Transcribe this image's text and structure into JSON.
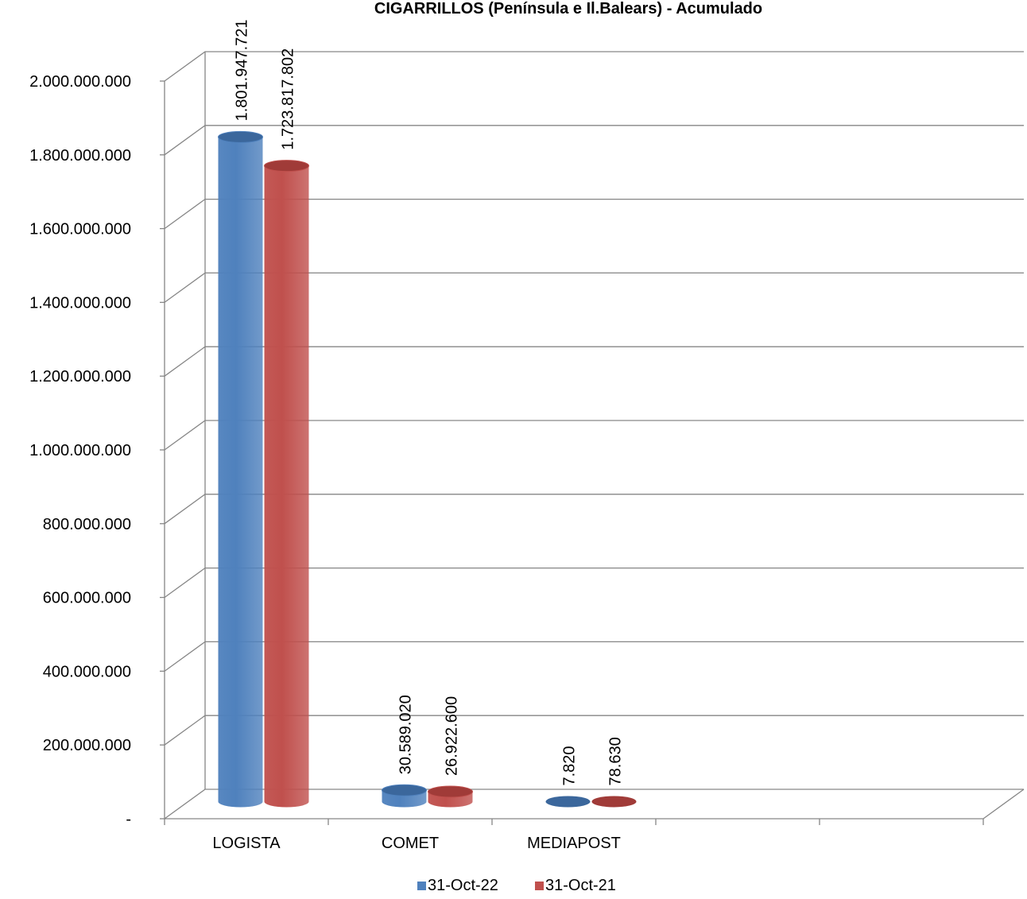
{
  "chart_data": {
    "type": "bar",
    "style": "3d-cylinder",
    "title": "CIGARRILLOS  (Península e Il.Balears) - Acumulado",
    "xlabel": "",
    "ylabel": "",
    "categories": [
      "LOGISTA",
      "COMET",
      "MEDIAPOST",
      "",
      ""
    ],
    "series": [
      {
        "name": "31-Oct-22",
        "color": "#4f81bd",
        "values": [
          1801947721,
          30589020,
          7820,
          null,
          null
        ],
        "labels": [
          "1.801.947.721",
          "30.589.020",
          "7.820",
          "",
          ""
        ]
      },
      {
        "name": "31-Oct-21",
        "color": "#c0504d",
        "values": [
          1723817802,
          26922600,
          78630,
          null,
          null
        ],
        "labels": [
          "1.723.817.802",
          "26.922.600",
          "78.630",
          "",
          ""
        ]
      }
    ],
    "ylim": [
      0,
      2000000000
    ],
    "y_ticks": [
      {
        "value": 0,
        "label": "-"
      },
      {
        "value": 200000000,
        "label": "200.000.000"
      },
      {
        "value": 400000000,
        "label": "400.000.000"
      },
      {
        "value": 600000000,
        "label": "600.000.000"
      },
      {
        "value": 800000000,
        "label": "800.000.000"
      },
      {
        "value": 1000000000,
        "label": "1.000.000.000"
      },
      {
        "value": 1200000000,
        "label": "1.200.000.000"
      },
      {
        "value": 1400000000,
        "label": "1.400.000.000"
      },
      {
        "value": 1600000000,
        "label": "1.600.000.000"
      },
      {
        "value": 1800000000,
        "label": "1.800.000.000"
      },
      {
        "value": 2000000000,
        "label": "2.000.000.000"
      }
    ],
    "grid": true,
    "legend": "bottom"
  }
}
